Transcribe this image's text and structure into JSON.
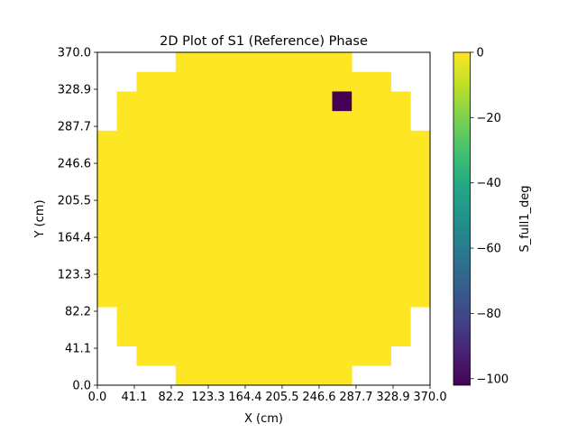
{
  "chart_data": {
    "type": "heatmap",
    "title": "2D Plot of S1 (Reference) Phase",
    "xlabel": "X (cm)",
    "ylabel": "Y (cm)",
    "xlim": [
      0,
      370
    ],
    "ylim": [
      0,
      370
    ],
    "x_ticks": [
      "0.0",
      "41.1",
      "82.2",
      "123.3",
      "164.4",
      "205.5",
      "246.6",
      "287.7",
      "328.9",
      "370.0"
    ],
    "y_ticks": [
      "0.0",
      "41.1",
      "82.2",
      "123.3",
      "164.4",
      "205.5",
      "246.6",
      "287.7",
      "328.9",
      "370.0"
    ],
    "grid": false,
    "colorbar": {
      "label": "S_full1_deg",
      "colormap": "viridis",
      "range": [
        -102,
        0
      ],
      "ticks": [
        "0",
        "−20",
        "−40",
        "−60",
        "−80",
        "−100"
      ],
      "tick_values": [
        0,
        -20,
        -40,
        -60,
        -80,
        -100
      ]
    },
    "grid_cells": 17,
    "fill_value": 0,
    "fill_color": "#fde725",
    "row_spans_from_bottom": [
      [
        4,
        12
      ],
      [
        2,
        14
      ],
      [
        1,
        15
      ],
      [
        1,
        15
      ],
      [
        0,
        16
      ],
      [
        0,
        16
      ],
      [
        0,
        16
      ],
      [
        0,
        16
      ],
      [
        0,
        16
      ],
      [
        0,
        16
      ],
      [
        0,
        16
      ],
      [
        0,
        16
      ],
      [
        0,
        16
      ],
      [
        1,
        15
      ],
      [
        1,
        15
      ],
      [
        2,
        14
      ],
      [
        4,
        12
      ]
    ],
    "outlier": {
      "col": 12,
      "row_from_bottom": 14,
      "value": -101,
      "color": "#440154"
    }
  }
}
